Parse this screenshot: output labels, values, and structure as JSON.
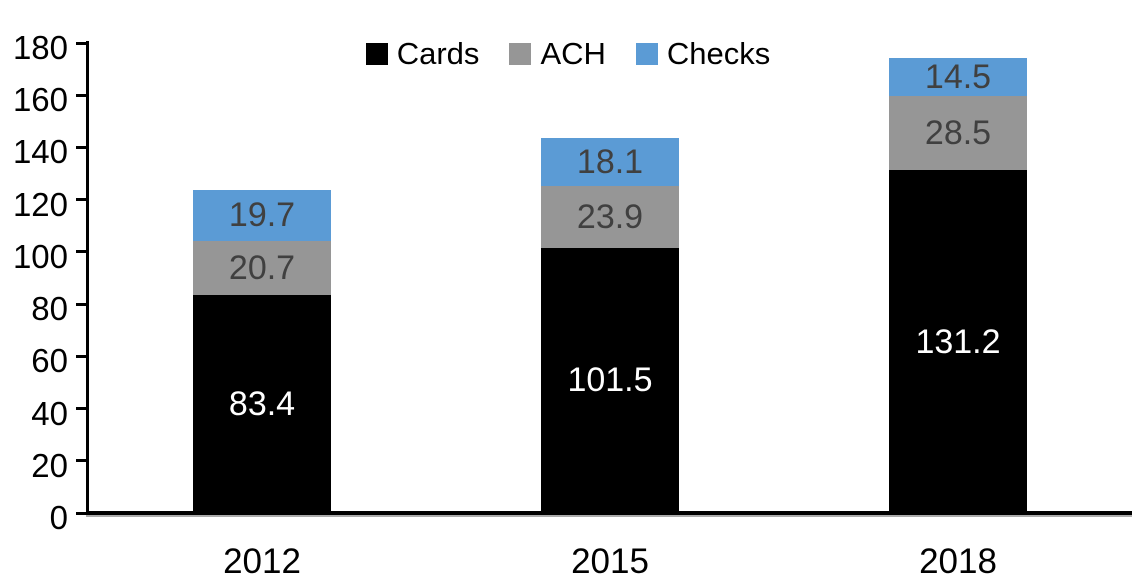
{
  "chart_data": {
    "type": "bar",
    "stacked": true,
    "categories": [
      "2012",
      "2015",
      "2018"
    ],
    "series": [
      {
        "name": "Cards",
        "color": "#000000",
        "label_color": "#ffffff",
        "values": [
          83.4,
          101.5,
          131.2
        ]
      },
      {
        "name": "ACH",
        "color": "#969696",
        "label_color": "#404040",
        "values": [
          20.7,
          23.9,
          28.5
        ]
      },
      {
        "name": "Checks",
        "color": "#5b9bd5",
        "label_color": "#404040",
        "values": [
          19.7,
          18.1,
          14.5
        ]
      }
    ],
    "yticks": [
      0,
      20,
      40,
      60,
      80,
      100,
      120,
      140,
      160,
      180
    ],
    "ylim": [
      0,
      180
    ],
    "legend_position": "top",
    "grid": false,
    "axis_color": "#000000"
  }
}
